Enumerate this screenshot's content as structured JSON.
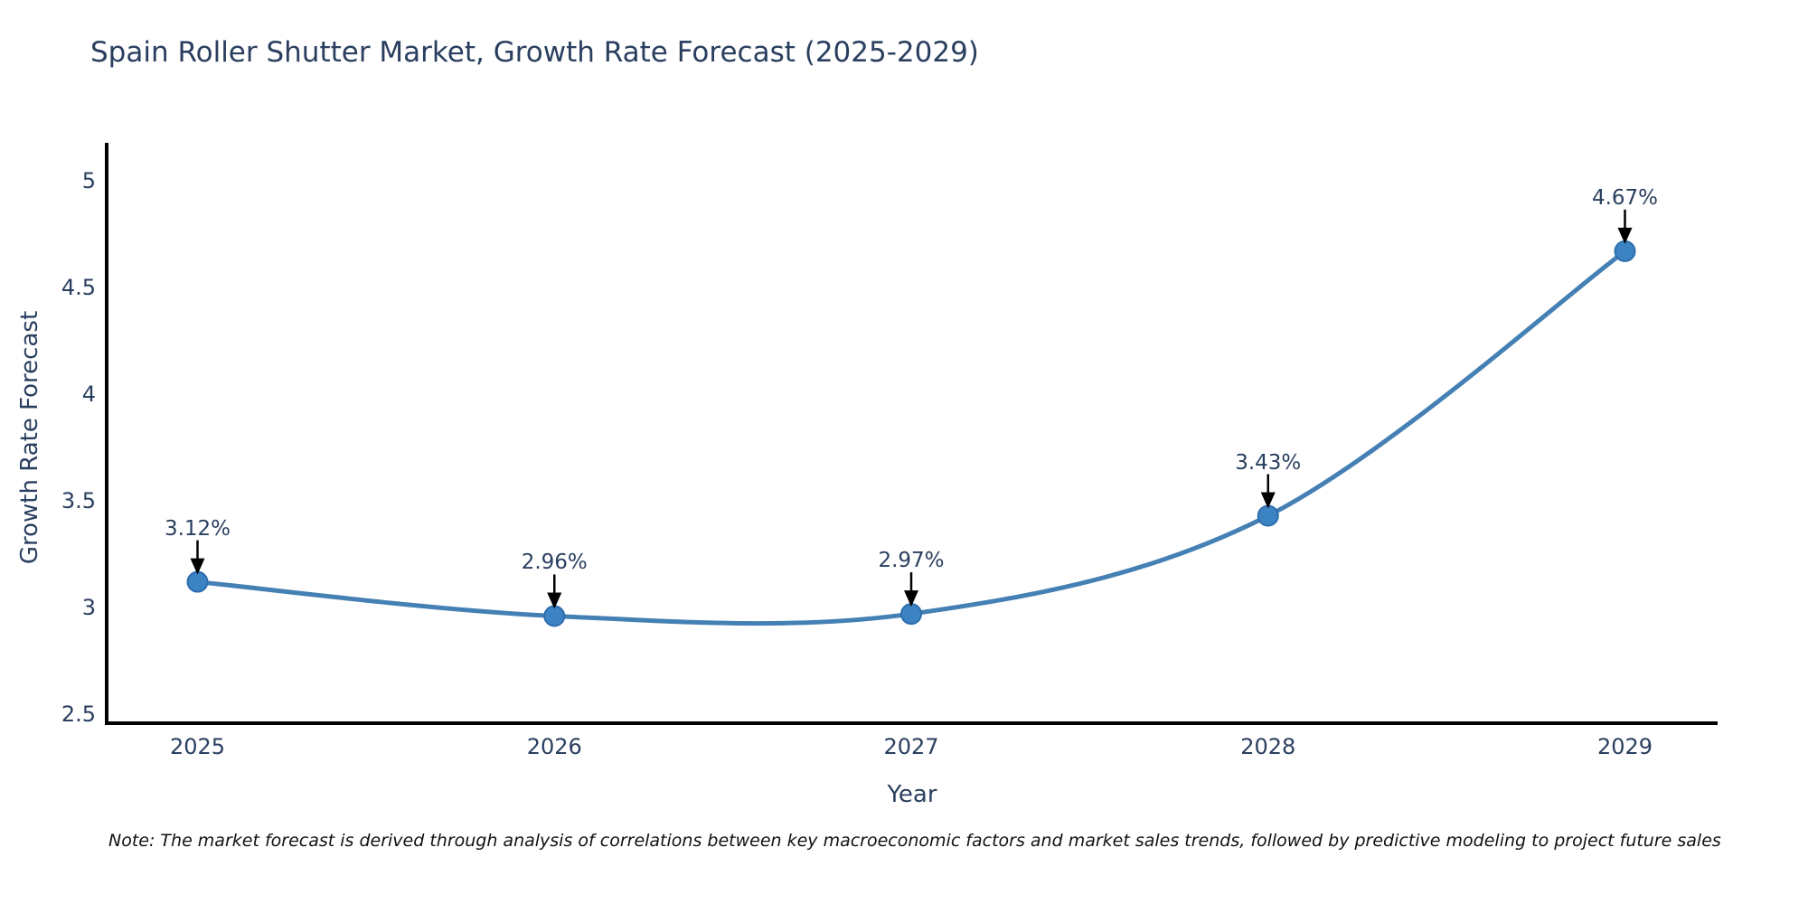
{
  "title": "Spain Roller Shutter Market, Growth Rate Forecast (2025-2029)",
  "note": "Note: The market forecast is derived through analysis of correlations between key macroeconomic factors and market sales trends, followed by predictive modeling to project future sales",
  "colors": {
    "text": "#2a3f5f",
    "note_text": "#111111",
    "line": "#4480b4",
    "marker_fill": "#3b83c2",
    "marker_edge": "#2e6dae",
    "axis": "#000000",
    "arrow": "#000000",
    "background": "#ffffff"
  },
  "chart_data": {
    "type": "line",
    "title": "Spain Roller Shutter Market, Growth Rate Forecast (2025-2029)",
    "xlabel": "Year",
    "ylabel": "Growth Rate Forecast",
    "x": [
      2025,
      2026,
      2027,
      2028,
      2029
    ],
    "values": [
      3.12,
      2.96,
      2.97,
      3.43,
      4.67
    ],
    "series": [
      {
        "name": "Growth Rate Forecast",
        "values": [
          3.12,
          2.96,
          2.97,
          3.43,
          4.67
        ]
      }
    ],
    "annotations": [
      "3.12%",
      "2.96%",
      "2.97%",
      "3.43%",
      "4.67%"
    ],
    "x_ticks": [
      "2025",
      "2026",
      "2027",
      "2028",
      "2029"
    ],
    "y_ticks": [
      5,
      4.5,
      4,
      3.5,
      3,
      2.5
    ],
    "ylim": [
      2.5,
      5.2
    ],
    "grid": false,
    "legend": "none",
    "line_shape": "spline",
    "marker": "circle"
  }
}
